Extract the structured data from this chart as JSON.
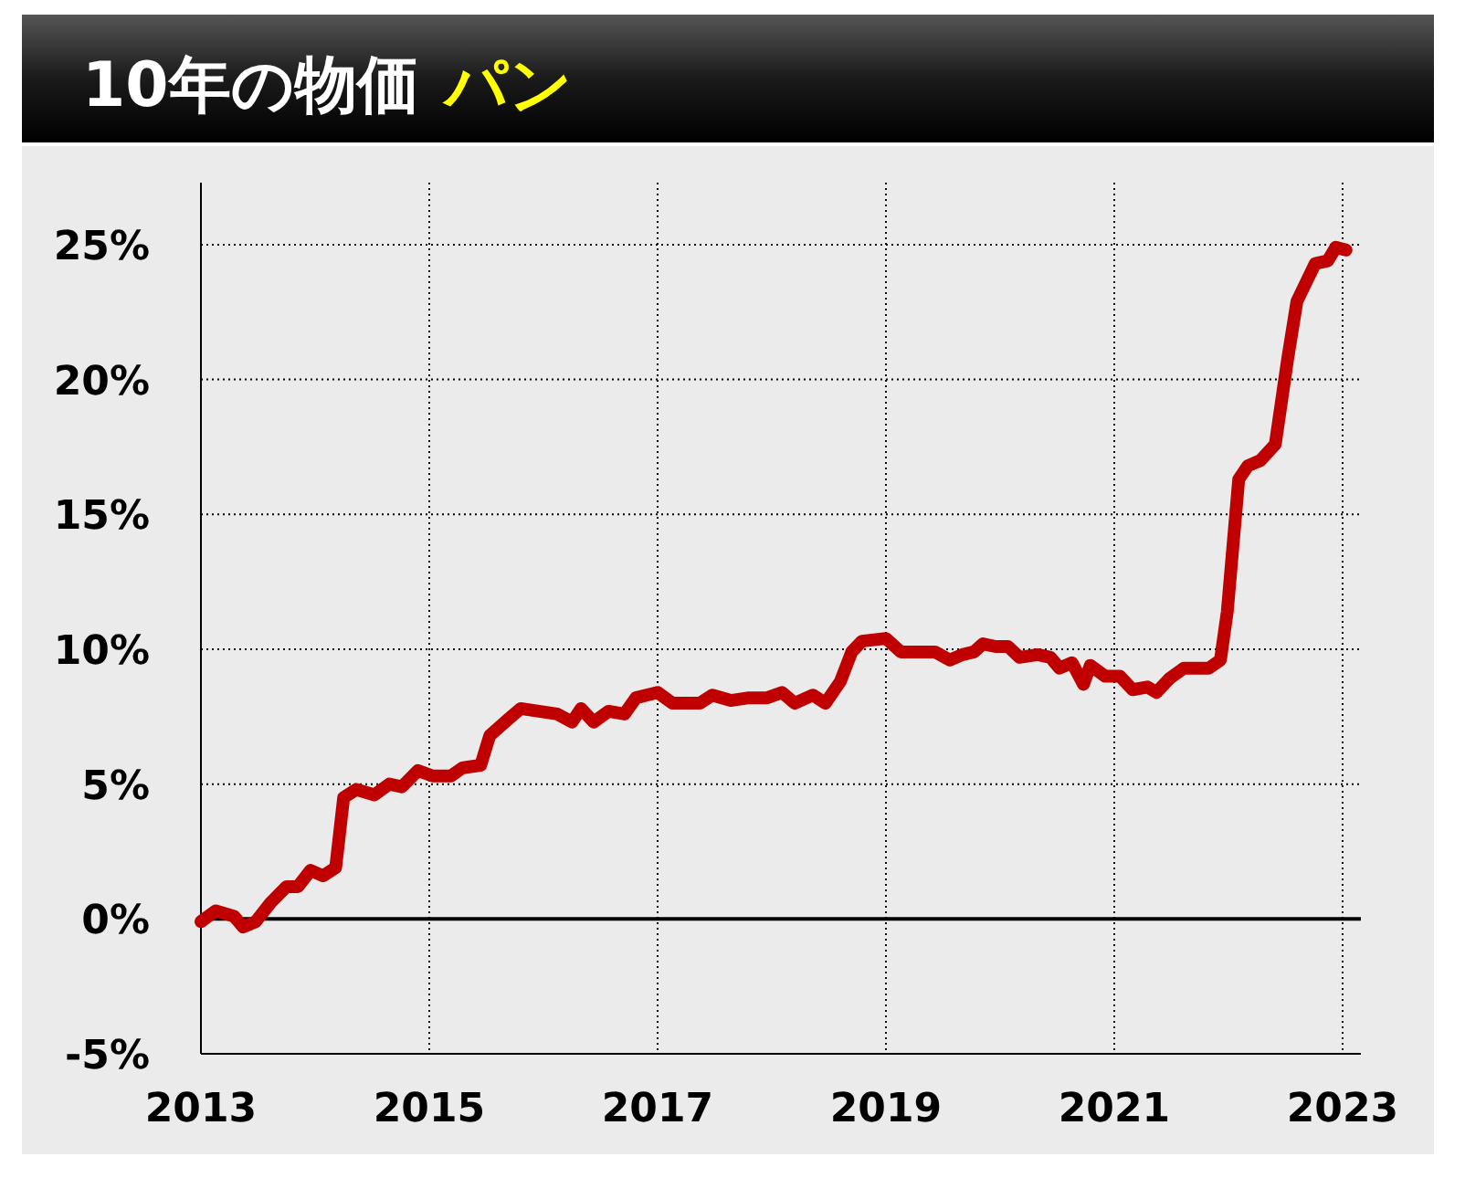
{
  "chart_data": {
    "type": "line",
    "title": "10年の物価",
    "subtitle": "パン",
    "x": [
      2013.0,
      2013.13,
      2013.29,
      2013.37,
      2013.48,
      2013.61,
      2013.75,
      2013.85,
      2013.96,
      2014.07,
      2014.18,
      2014.25,
      2014.36,
      2014.52,
      2014.65,
      2014.76,
      2014.9,
      2015.03,
      2015.19,
      2015.29,
      2015.45,
      2015.53,
      2015.69,
      2015.8,
      2015.96,
      2016.12,
      2016.25,
      2016.33,
      2016.44,
      2016.57,
      2016.71,
      2016.81,
      2017.0,
      2017.13,
      2017.37,
      2017.48,
      2017.64,
      2017.8,
      2017.96,
      2018.09,
      2018.2,
      2018.36,
      2018.47,
      2018.6,
      2018.7,
      2018.79,
      2019.0,
      2019.13,
      2019.32,
      2019.43,
      2019.56,
      2019.67,
      2019.77,
      2019.85,
      2019.96,
      2020.07,
      2020.17,
      2020.33,
      2020.44,
      2020.52,
      2020.63,
      2020.73,
      2020.79,
      2020.92,
      2021.05,
      2021.16,
      2021.29,
      2021.37,
      2021.48,
      2021.61,
      2021.72,
      2021.83,
      2021.93,
      2021.99,
      2022.09,
      2022.17,
      2022.28,
      2022.41,
      2022.52,
      2022.6,
      2022.68,
      2022.76,
      2022.87,
      2022.94,
      2023.03
    ],
    "series": [
      {
        "color": "#c00000",
        "values": [
          -0.1,
          0.3,
          0.1,
          -0.3,
          -0.1,
          0.6,
          1.2,
          1.2,
          1.8,
          1.6,
          1.9,
          4.5,
          4.8,
          4.6,
          5.0,
          4.9,
          5.5,
          5.3,
          5.3,
          5.6,
          5.7,
          6.8,
          7.4,
          7.8,
          7.7,
          7.6,
          7.3,
          7.8,
          7.3,
          7.7,
          7.6,
          8.2,
          8.4,
          8.0,
          8.0,
          8.3,
          8.1,
          8.2,
          8.2,
          8.4,
          8.0,
          8.3,
          8.0,
          8.8,
          9.9,
          10.3,
          10.4,
          9.9,
          9.9,
          9.9,
          9.6,
          9.8,
          9.9,
          10.2,
          10.1,
          10.1,
          9.7,
          9.8,
          9.7,
          9.3,
          9.5,
          8.7,
          9.4,
          9.0,
          9.0,
          8.5,
          8.6,
          8.4,
          8.9,
          9.3,
          9.3,
          9.3,
          9.6,
          11.4,
          16.3,
          16.8,
          17.0,
          17.6,
          20.8,
          22.9,
          23.6,
          24.3,
          24.4,
          24.9,
          24.8
        ]
      }
    ],
    "xlim": [
      2013,
      2023.16
    ],
    "ylim": [
      -5,
      27.3
    ],
    "xticks": [
      2013,
      2015,
      2017,
      2019,
      2021,
      2023
    ],
    "yticks": [
      {
        "value": -5,
        "label": "-5%"
      },
      {
        "value": 0,
        "label": "0%"
      },
      {
        "value": 5,
        "label": "5%"
      },
      {
        "value": 10,
        "label": "10%"
      },
      {
        "value": 15,
        "label": "15%"
      },
      {
        "value": 20,
        "label": "20%"
      },
      {
        "value": 25,
        "label": "25%"
      }
    ],
    "grid": true,
    "marker": "none",
    "line_style": "solid",
    "ref_lines": [
      {
        "axis": "y",
        "value": 0,
        "color": "#000000",
        "line_style": "solid"
      }
    ]
  }
}
